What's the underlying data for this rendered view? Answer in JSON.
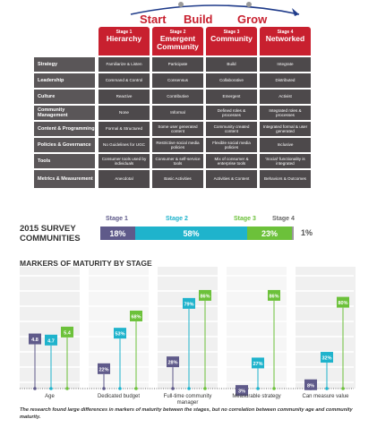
{
  "header": {
    "words": [
      "Start",
      "Build",
      "Grow"
    ],
    "colors": {
      "accent": "#c8202f",
      "arrow": "#1f3b8a",
      "dark": "#4d494b",
      "label": "#5a5658"
    }
  },
  "stages": [
    {
      "number": "Stage 1",
      "title": "Hierarchy"
    },
    {
      "number": "Stage 2",
      "title": "Emergent Community"
    },
    {
      "number": "Stage 3",
      "title": "Community"
    },
    {
      "number": "Stage 4",
      "title": "Networked"
    }
  ],
  "matrix": [
    {
      "label": "Strategy",
      "cells": [
        "Familiarize & Listen",
        "Participate",
        "Build",
        "Integrate"
      ]
    },
    {
      "label": "Leadership",
      "cells": [
        "Command & Control",
        "Consensus",
        "Collaborative",
        "Distributed"
      ]
    },
    {
      "label": "Culture",
      "cells": [
        "Reactive",
        "Contributive",
        "Emergent",
        "Activist"
      ]
    },
    {
      "label": "Community Management",
      "cells": [
        "None",
        "Informal",
        "Defined roles & processes",
        "Integrated roles & processes"
      ]
    },
    {
      "label": "Content & Programming",
      "cells": [
        "Formal & Structured",
        "Some user generated content",
        "Community created content",
        "Integrated formal & user generated"
      ]
    },
    {
      "label": "Policies & Governance",
      "cells": [
        "No Guidelines for UGC",
        "Restrictive social media policies",
        "Flexible social media policies",
        "Inclusive"
      ]
    },
    {
      "label": "Tools",
      "cells": [
        "Consumer tools used by individuals",
        "Consumer & self-service tools",
        "Mix of consumer & enterprise tools",
        "'Social' functionality is integrated"
      ]
    },
    {
      "label": "Metrics & Measurement",
      "cells": [
        "Anecdotal",
        "Basic Activities",
        "Activities & Content",
        "Behaviors & Outcomes"
      ]
    }
  ],
  "survey": {
    "title_line1": "2015 SURVEY",
    "title_line2": "COMMUNITIES",
    "segments": [
      {
        "stage": "Stage 1",
        "value": 18,
        "label": "18%",
        "color": "#5f5a8a"
      },
      {
        "stage": "Stage 2",
        "value": 58,
        "label": "58%",
        "color": "#1fb3cc"
      },
      {
        "stage": "Stage 3",
        "value": 23,
        "label": "23%",
        "color": "#6cc13a"
      },
      {
        "stage": "Stage 4",
        "value": 1,
        "label": "1%",
        "color": "#9a9a9a"
      }
    ]
  },
  "chart_data": {
    "type": "bar",
    "title": "MARKERS OF MATURITY BY STAGE",
    "categories": [
      "Age",
      "Dedicated budget",
      "Full-time community manager",
      "Measurable strategy",
      "Can measure value"
    ],
    "series": [
      {
        "name": "Stage 1",
        "color": "#5f5a8a",
        "values": [
          4.8,
          22,
          28,
          3,
          8
        ],
        "labels": [
          "4.8",
          "22%",
          "28%",
          "3%",
          "8%"
        ]
      },
      {
        "name": "Stage 2",
        "color": "#1fb3cc",
        "values": [
          4.7,
          53,
          79,
          27,
          32
        ],
        "labels": [
          "4.7",
          "53%",
          "79%",
          "27%",
          "32%"
        ]
      },
      {
        "name": "Stage 3",
        "color": "#6cc13a",
        "values": [
          5.4,
          68,
          86,
          86,
          80
        ],
        "labels": [
          "5.4",
          "68%",
          "86%",
          "86%",
          "80%"
        ]
      }
    ],
    "grid": false,
    "legend": "none"
  },
  "caption": "The research found large differences in markers of maturity between the stages, but no correlation between community age and community maturity."
}
